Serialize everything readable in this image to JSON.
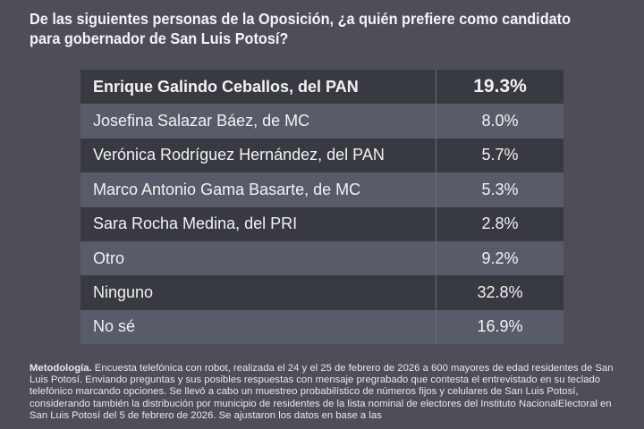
{
  "title": "De las siguientes personas de la Oposición, ¿a quién prefiere como candidato para gobernador de San Luis Potosí?",
  "table": {
    "rows": [
      {
        "name": "Enrique Galindo Ceballos, del PAN",
        "value": "19.3%"
      },
      {
        "name": "Josefina Salazar Báez, de MC",
        "value": "8.0%"
      },
      {
        "name": "Verónica Rodríguez Hernández, del PAN",
        "value": "5.7%"
      },
      {
        "name": "Marco Antonio Gama Basarte, de MC",
        "value": "5.3%"
      },
      {
        "name": "Sara Rocha Medina, del PRI",
        "value": "2.8%"
      },
      {
        "name": "Otro",
        "value": "9.2%"
      },
      {
        "name": "Ninguno",
        "value": "32.8%"
      },
      {
        "name": "No sé",
        "value": "16.9%"
      }
    ]
  },
  "methodology": {
    "label": "Metodología.",
    "text": " Encuesta telefónica con robot, realizada el 24 y el 25 de febrero de 2026 a 600 mayores de edad residentes de San Luis Potosí. Enviando preguntas y sus posibles respuestas con mensaje pregrabado que contesta el entrevistado en su teclado telefónico marcando opciones. Se llevó a cabo un muestreo probabilístico de números fijos y celulares de San Luis Potosí, considerando también la distribución por municipio de residentes de la lista nominal de electores del Instituto NacionalElectoral en San Luis Potosí del 5 de febrero de 2026. Se ajustaron los datos en base a las"
  },
  "colors": {
    "background": "#4f4d58",
    "row_dark": "#383a41",
    "row_light": "#585c69",
    "text": "#f2f2f4"
  }
}
